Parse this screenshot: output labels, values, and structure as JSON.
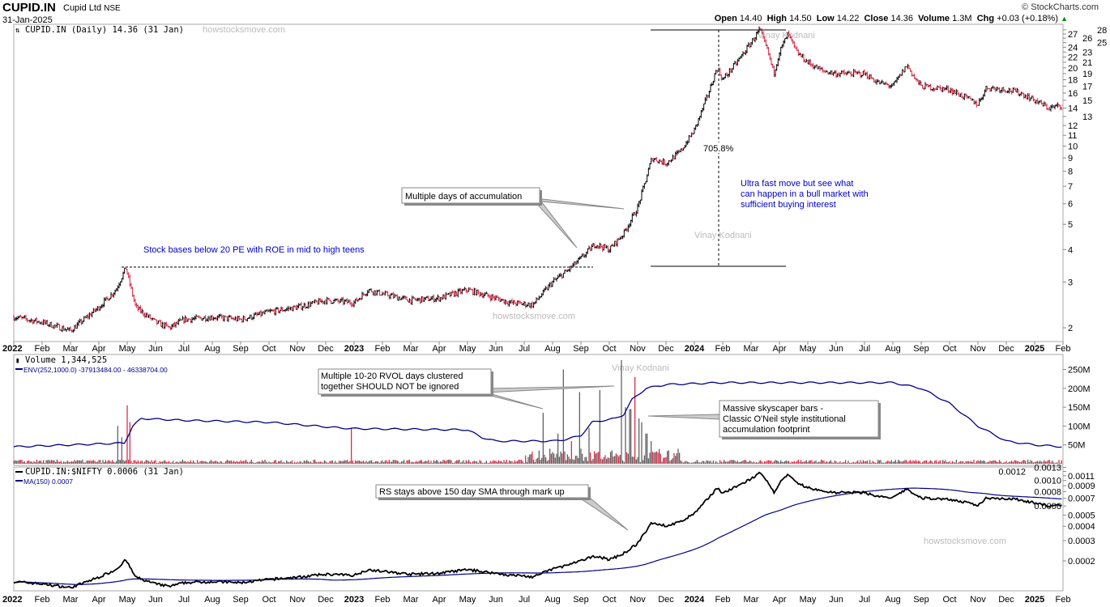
{
  "header": {
    "symbol": "CUPID.IN",
    "company": "Cupid Ltd",
    "exchange": "NSE",
    "date": "31-Jan-2025",
    "source": "© StockCharts.com",
    "open_label": "Open",
    "open": "14.40",
    "high_label": "High",
    "high": "14.50",
    "low_label": "Low",
    "low": "14.22",
    "close_label": "Close",
    "close": "14.36",
    "volume_label": "Volume",
    "volume": "1.3M",
    "chg_label": "Chg",
    "chg": "+0.03 (+0.18%)"
  },
  "legends": {
    "price": "CUPID.IN (Daily) 14.36 (31 Jan)",
    "volume": "Volume 1,344,525",
    "env": "ENV(252,1000.0) -37913484.00 - 46338704.00",
    "rs": "CUPID.IN:$NIFTY 0.0006 (31 Jan)",
    "ma": "MA(150) 0.0007"
  },
  "watermarks": {
    "site": "howstocksmove.com",
    "author": "Vinay Kodnani"
  },
  "annotations": {
    "bases": "Stock bases below 20 PE with ROE in mid to high teens",
    "accumulation": "Multiple days of accumulation",
    "gain": "705.8%",
    "ultra_fast": [
      "Ultra fast move but see what",
      "can happen in a bull market with",
      "sufficient buying interest"
    ],
    "rvol": [
      "Multiple 10-20 RVOL days clustered",
      "together SHOULD NOT be ignored"
    ],
    "skyscraper": [
      "Massive skyscaper bars -",
      "Classic O'Neil style institutional",
      "accumulation footprint"
    ],
    "rs_sma": "RS stays above 150 day SMA through mark up"
  },
  "colors": {
    "up": "#000000",
    "down": "#d81e3c",
    "ma": "#00008b",
    "env": "#00008b",
    "annotation_text": "#0000cc"
  },
  "chart_data": [
    {
      "type": "candlestick",
      "title": "CUPID.IN (Daily)",
      "scale": "log",
      "ylim": [
        1.8,
        29
      ],
      "x_ticks": [
        {
          "m": 0,
          "label": "2022",
          "bold": true
        },
        {
          "m": 1,
          "label": "Feb"
        },
        {
          "m": 2,
          "label": "Mar"
        },
        {
          "m": 3,
          "label": "Apr"
        },
        {
          "m": 4,
          "label": "May"
        },
        {
          "m": 5,
          "label": "Jun"
        },
        {
          "m": 6,
          "label": "Jul"
        },
        {
          "m": 7,
          "label": "Aug"
        },
        {
          "m": 8,
          "label": "Sep"
        },
        {
          "m": 9,
          "label": "Oct"
        },
        {
          "m": 10,
          "label": "Nov"
        },
        {
          "m": 11,
          "label": "Dec"
        },
        {
          "m": 12,
          "label": "2023",
          "bold": true
        },
        {
          "m": 13,
          "label": "Feb"
        },
        {
          "m": 14,
          "label": "Mar"
        },
        {
          "m": 15,
          "label": "Apr"
        },
        {
          "m": 16,
          "label": "May"
        },
        {
          "m": 17,
          "label": "Jun"
        },
        {
          "m": 18,
          "label": "Jul"
        },
        {
          "m": 19,
          "label": "Aug"
        },
        {
          "m": 20,
          "label": "Sep"
        },
        {
          "m": 21,
          "label": "Oct"
        },
        {
          "m": 22,
          "label": "Nov"
        },
        {
          "m": 23,
          "label": "Dec"
        },
        {
          "m": 24,
          "label": "2024",
          "bold": true
        },
        {
          "m": 25,
          "label": "Feb"
        },
        {
          "m": 26,
          "label": "Mar"
        },
        {
          "m": 27,
          "label": "Apr"
        },
        {
          "m": 28,
          "label": "May"
        },
        {
          "m": 29,
          "label": "Jun"
        },
        {
          "m": 30,
          "label": "Jul"
        },
        {
          "m": 31,
          "label": "Aug"
        },
        {
          "m": 32,
          "label": "Sep"
        },
        {
          "m": 33,
          "label": "Oct"
        },
        {
          "m": 34,
          "label": "Nov"
        },
        {
          "m": 35,
          "label": "Dec"
        },
        {
          "m": 36,
          "label": "2025",
          "bold": true
        },
        {
          "m": 37,
          "label": "Feb"
        }
      ],
      "y_ticks": [
        "2",
        "3",
        "4",
        "5",
        "6",
        "7",
        "8",
        "9",
        "10",
        "11",
        "12",
        "13",
        "14",
        "15",
        "16",
        "17",
        "18",
        "19",
        "20",
        "21",
        "22",
        "23",
        "24",
        "25",
        "26",
        "27",
        "28"
      ],
      "price_path_months_since_jan2022": [
        [
          0,
          2.2
        ],
        [
          1,
          2.1
        ],
        [
          2,
          1.95
        ],
        [
          3,
          2.4
        ],
        [
          3.6,
          2.8
        ],
        [
          3.95,
          3.4
        ],
        [
          4.3,
          2.4
        ],
        [
          5,
          2.1
        ],
        [
          5.5,
          2.0
        ],
        [
          6,
          2.15
        ],
        [
          7,
          2.2
        ],
        [
          8,
          2.15
        ],
        [
          9,
          2.3
        ],
        [
          10,
          2.4
        ],
        [
          11,
          2.55
        ],
        [
          12,
          2.5
        ],
        [
          12.5,
          2.8
        ],
        [
          13,
          2.7
        ],
        [
          14,
          2.55
        ],
        [
          15,
          2.6
        ],
        [
          16,
          2.8
        ],
        [
          17,
          2.6
        ],
        [
          17.5,
          2.5
        ],
        [
          18.3,
          2.45
        ],
        [
          19,
          3.0
        ],
        [
          19.5,
          3.3
        ],
        [
          20,
          3.7
        ],
        [
          20.5,
          4.2
        ],
        [
          21,
          4.0
        ],
        [
          21.5,
          4.6
        ],
        [
          22,
          5.8
        ],
        [
          22.3,
          7.5
        ],
        [
          22.5,
          9
        ],
        [
          23,
          8.6
        ],
        [
          23.5,
          9.5
        ],
        [
          24,
          11.5
        ],
        [
          24.5,
          16
        ],
        [
          24.8,
          20
        ],
        [
          25,
          18
        ],
        [
          25.5,
          21
        ],
        [
          26,
          25
        ],
        [
          26.3,
          28
        ],
        [
          26.6,
          23
        ],
        [
          26.8,
          19
        ],
        [
          27,
          23
        ],
        [
          27.3,
          27
        ],
        [
          27.6,
          23
        ],
        [
          28,
          21
        ],
        [
          28.5,
          19.5
        ],
        [
          29,
          19
        ],
        [
          30,
          19
        ],
        [
          30.5,
          17.5
        ],
        [
          31,
          17
        ],
        [
          31.5,
          20.5
        ],
        [
          31.8,
          18
        ],
        [
          32,
          17
        ],
        [
          33,
          16.5
        ],
        [
          33.5,
          15.5
        ],
        [
          34,
          14.5
        ],
        [
          34.3,
          16.8
        ],
        [
          35,
          16.5
        ],
        [
          35.5,
          16
        ],
        [
          36,
          15
        ],
        [
          36.5,
          14
        ],
        [
          37,
          14.36
        ]
      ]
    },
    {
      "type": "bar",
      "title": "Volume",
      "unit": "M",
      "ylim": [
        0,
        280
      ],
      "y_ticks": [
        "50M",
        "100M",
        "150M",
        "200M",
        "250M"
      ],
      "volume_spikes_M": [
        [
          3.66,
          100
        ],
        [
          3.8,
          70
        ],
        [
          4.0,
          155
        ],
        [
          4.09,
          110
        ],
        [
          11.9,
          95
        ],
        [
          18.66,
          135
        ],
        [
          18.9,
          40
        ],
        [
          19.2,
          80
        ],
        [
          19.37,
          250
        ],
        [
          19.66,
          60
        ],
        [
          19.94,
          190
        ],
        [
          20.3,
          95
        ],
        [
          20.66,
          195
        ],
        [
          21.43,
          275
        ],
        [
          21.57,
          150
        ],
        [
          21.74,
          145
        ],
        [
          21.89,
          230
        ],
        [
          22.03,
          120
        ],
        [
          22.14,
          110
        ],
        [
          22.31,
          80
        ],
        [
          22.46,
          60
        ]
      ],
      "env_upper_M": [
        [
          0,
          45
        ],
        [
          2,
          50
        ],
        [
          3.9,
          55
        ],
        [
          4.2,
          100
        ],
        [
          4.5,
          120
        ],
        [
          6,
          115
        ],
        [
          9,
          110
        ],
        [
          11.5,
          95
        ],
        [
          12,
          93
        ],
        [
          16,
          90
        ],
        [
          16.5,
          70
        ],
        [
          17,
          60
        ],
        [
          19,
          60
        ],
        [
          19.5,
          65
        ],
        [
          20,
          75
        ],
        [
          20.4,
          110
        ],
        [
          21.2,
          120
        ],
        [
          21.5,
          130
        ],
        [
          21.8,
          170
        ],
        [
          22.3,
          200
        ],
        [
          23,
          210
        ],
        [
          25,
          215
        ],
        [
          31,
          215
        ],
        [
          32,
          200
        ],
        [
          33,
          160
        ],
        [
          34,
          100
        ],
        [
          35,
          60
        ],
        [
          36,
          50
        ],
        [
          37,
          45
        ]
      ]
    },
    {
      "type": "line",
      "title": "CUPID.IN:$NIFTY",
      "scale": "log",
      "series": [
        {
          "name": "CUPID.IN:$NIFTY",
          "last": 0.0006
        },
        {
          "name": "MA(150)",
          "last": 0.0007
        }
      ],
      "y_ticks": [
        "0.0002",
        "0.0003",
        "0.0004",
        "0.0005",
        "0.0006",
        "0.0007",
        "0.0008",
        "0.0009",
        "0.0010",
        "0.0011",
        "0.0012",
        "0.0013"
      ],
      "nifty_relative_factor": [
        [
          0,
          1.0
        ],
        [
          18,
          1.0
        ],
        [
          26,
          1.45
        ],
        [
          32,
          1.45
        ],
        [
          37,
          1.4
        ]
      ]
    }
  ]
}
